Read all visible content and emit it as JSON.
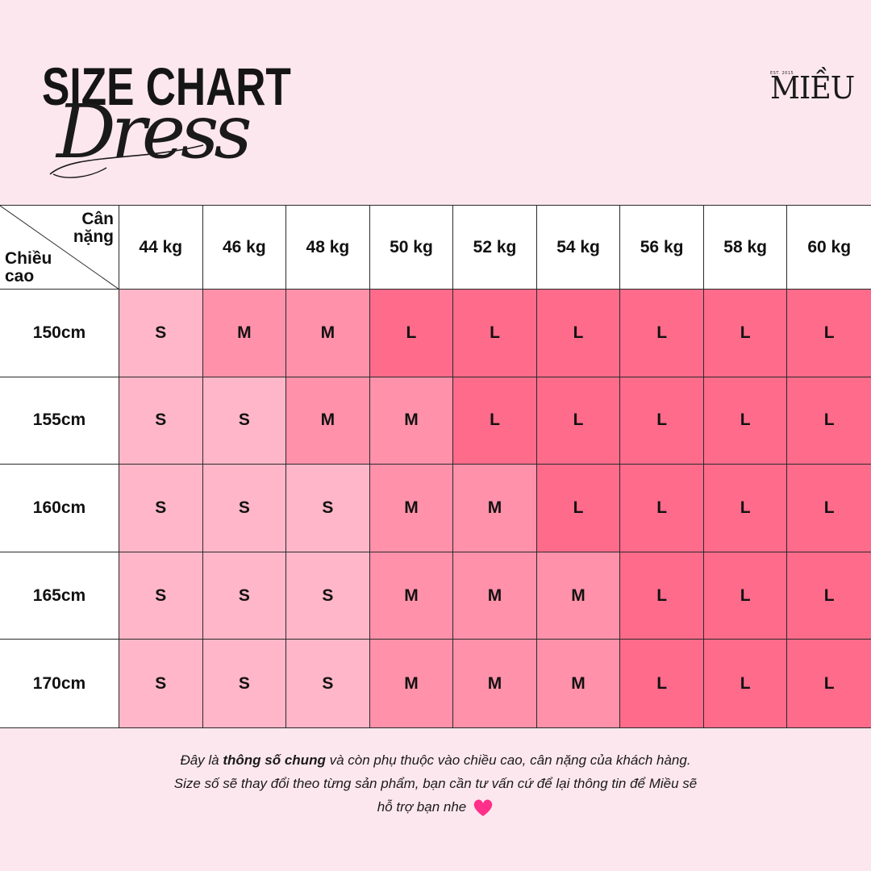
{
  "header": {
    "title": "SIZE CHART",
    "subtitle_script": "Dress"
  },
  "brand": {
    "name": "MIỀU",
    "est": "EST. 2015"
  },
  "table": {
    "corner_top": "Cân nặng",
    "corner_bottom": "Chiều cao",
    "weights": [
      "44 kg",
      "46 kg",
      "48 kg",
      "50 kg",
      "52 kg",
      "54 kg",
      "56 kg",
      "58 kg",
      "60 kg"
    ],
    "rows": [
      {
        "height": "150cm",
        "sizes": [
          "S",
          "M",
          "M",
          "L",
          "L",
          "L",
          "L",
          "L",
          "L"
        ]
      },
      {
        "height": "155cm",
        "sizes": [
          "S",
          "S",
          "M",
          "M",
          "L",
          "L",
          "L",
          "L",
          "L"
        ]
      },
      {
        "height": "160cm",
        "sizes": [
          "S",
          "S",
          "S",
          "M",
          "M",
          "L",
          "L",
          "L",
          "L"
        ]
      },
      {
        "height": "165cm",
        "sizes": [
          "S",
          "S",
          "S",
          "M",
          "M",
          "M",
          "L",
          "L",
          "L"
        ]
      },
      {
        "height": "170cm",
        "sizes": [
          "S",
          "S",
          "S",
          "M",
          "M",
          "M",
          "L",
          "L",
          "L"
        ]
      }
    ]
  },
  "colors": {
    "background": "#fde7ee",
    "S": "#ffb6c8",
    "M": "#ff91aa",
    "L": "#ff6b8b",
    "M_150_46": "#ff91aa",
    "heart": "#ff2f8a"
  },
  "footer": {
    "line1_pre": "Đây là ",
    "line1_bold": "thông số chung",
    "line1_post": " và còn phụ thuộc vào chiều cao, cân nặng của khách hàng.",
    "line2": "Size số sẽ thay đổi theo từng sản phẩm, bạn cần tư vấn cứ để lại thông tin để Miều sẽ",
    "line3": "hỗ trợ bạn nhe",
    "heart_icon": "heart-icon"
  }
}
